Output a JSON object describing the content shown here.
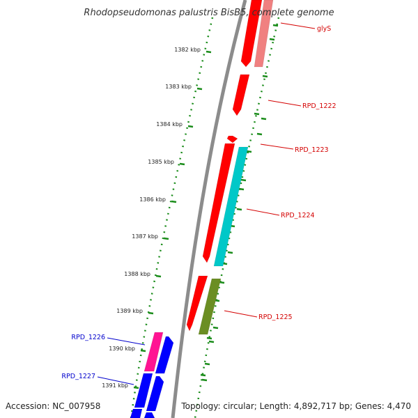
{
  "title": "Rhodopseudomonas palustris BisB5, complete genome",
  "footer": {
    "accession": "Accession: NC_007958",
    "topology": "Topology: circular; Length: 4,892,717 bp; Genes: 4,470"
  },
  "scale_labels": [
    "1382 kbp",
    "1383 kbp",
    "1384 kbp",
    "1385 kbp",
    "1386 kbp",
    "1387 kbp",
    "1388 kbp",
    "1389 kbp",
    "1390 kbp",
    "1391 kbp"
  ],
  "gene_labels": [
    {
      "text": "glyS",
      "color": "#d40000"
    },
    {
      "text": "RPD_1222",
      "color": "#d40000"
    },
    {
      "text": "RPD_1223",
      "color": "#d40000"
    },
    {
      "text": "RPD_1224",
      "color": "#d40000"
    },
    {
      "text": "RPD_1225",
      "color": "#d40000"
    },
    {
      "text": "RPD_1226",
      "color": "#0000cc"
    },
    {
      "text": "RPD_1227",
      "color": "#0000cc"
    }
  ],
  "colors": {
    "backbone": "#8c8c8c",
    "ruler": "#1a8c1a",
    "red_gene": "#ff0000",
    "pink_gene": "#f08080",
    "cyan_gene": "#00c8c8",
    "olive_gene": "#6b8e23",
    "blue_gene": "#0000ff",
    "magenta_gene": "#ff1493"
  }
}
